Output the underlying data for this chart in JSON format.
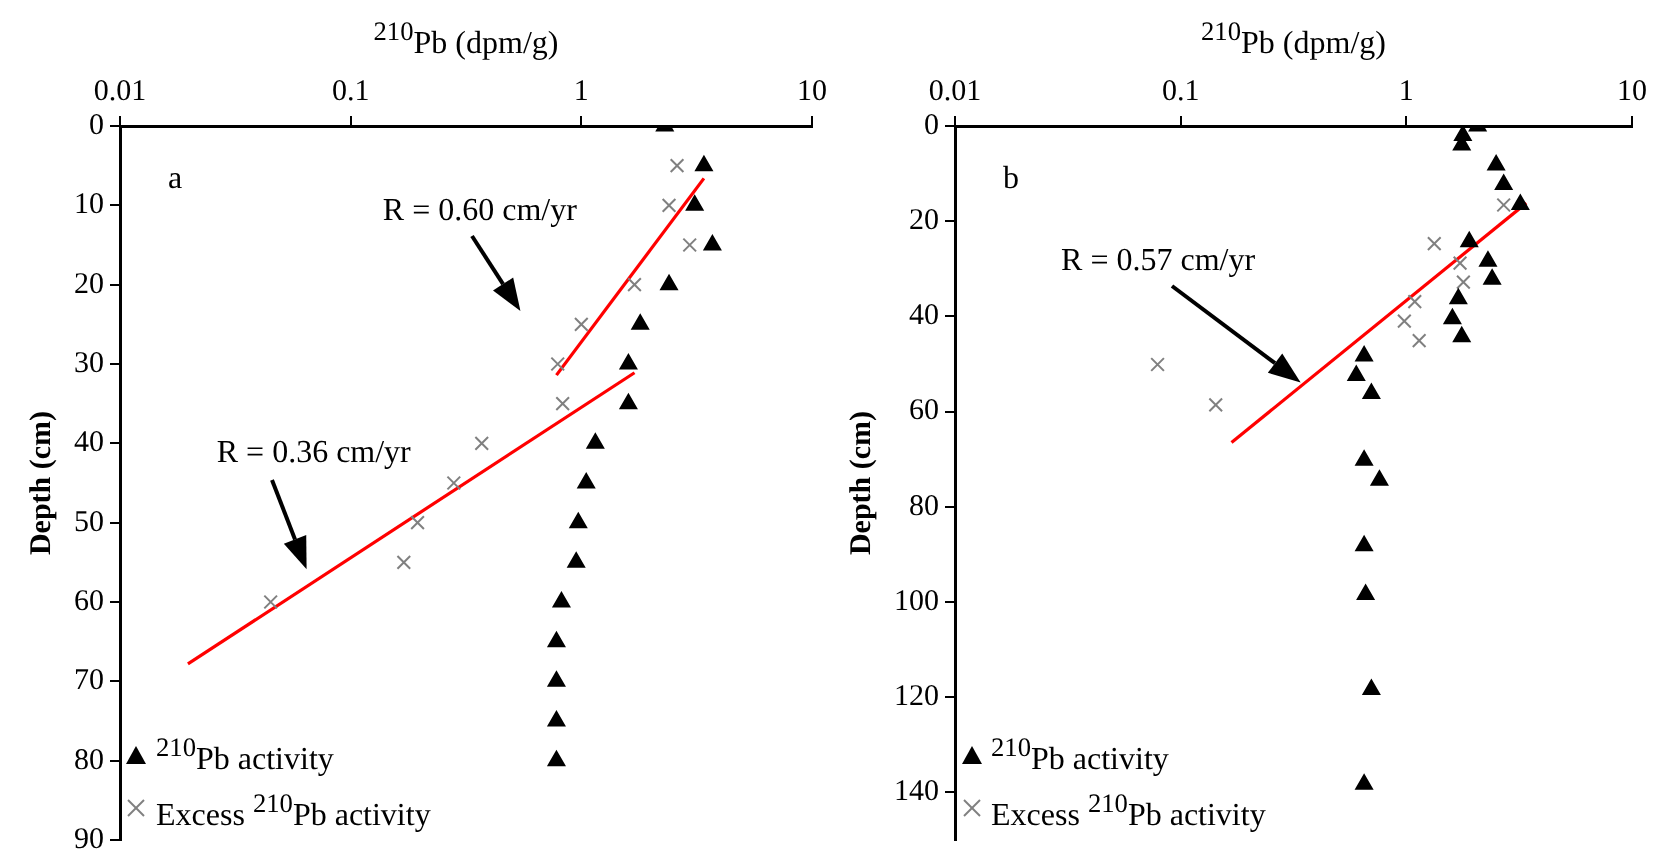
{
  "chart_data": [
    {
      "type": "scatter",
      "title": "a",
      "xlabel": "$^{210}$Pb (dpm/g)",
      "ylabel": "Depth (cm)",
      "log": "x",
      "xlim": [
        0.01,
        10
      ],
      "xticks": [
        0.01,
        0.1,
        1,
        10
      ],
      "ylim": [
        90,
        0
      ],
      "yticks": [
        0,
        10,
        20,
        30,
        40,
        50,
        60,
        70,
        80,
        90
      ],
      "grid": false,
      "legend": "bottom left",
      "series": [
        {
          "name": "$^{210}$Pb activity",
          "color": "#000000",
          "marker": "triangle",
          "x": [
            2.3,
            3.4,
            3.1,
            3.7,
            2.4,
            1.8,
            1.6,
            1.6,
            1.15,
            1.05,
            0.97,
            0.95,
            0.82,
            0.78,
            0.78,
            0.78,
            0.78
          ],
          "values": [
            0,
            5,
            10,
            15,
            20,
            25,
            30,
            35,
            40,
            45,
            50,
            55,
            60,
            65,
            70,
            75,
            80
          ]
        },
        {
          "name": "Excess $^{210}$Pb activity",
          "color": "#808080",
          "marker": "cross",
          "x": [
            2.6,
            2.4,
            2.95,
            1.7,
            1.0,
            0.79,
            0.83,
            0.37,
            0.28,
            0.195,
            0.17,
            0.045
          ],
          "values": [
            5,
            10,
            15,
            20,
            25,
            30,
            35,
            40,
            45,
            50,
            55,
            60
          ]
        },
        {
          "type": "line",
          "color": "#ff0000",
          "marker": "none",
          "x": [
            0.78,
            3.4
          ],
          "values": [
            31.4,
            6.6
          ]
        },
        {
          "type": "line",
          "color": "#ff0000",
          "marker": "none",
          "x": [
            0.0197,
            1.7
          ],
          "values": [
            67.8,
            31.1
          ]
        }
      ],
      "annotations": [
        "R = 0.60 cm/yr",
        "R = 0.36 cm/yr"
      ]
    },
    {
      "type": "scatter",
      "title": "b",
      "xlabel": "$^{210}$Pb (dpm/g)",
      "ylabel": "Depth (cm)",
      "log": "x",
      "xlim": [
        0.01,
        10
      ],
      "xticks": [
        0.01,
        0.1,
        1,
        10
      ],
      "ylim": [
        150,
        0
      ],
      "yticks": [
        0,
        20,
        40,
        60,
        80,
        100,
        120,
        140
      ],
      "grid": false,
      "legend": "bottom left",
      "series": [
        {
          "name": "$^{210}$Pb activity",
          "color": "#000000",
          "marker": "triangle",
          "x": [
            2.07,
            1.78,
            1.76,
            2.5,
            2.7,
            3.2,
            1.9,
            2.3,
            2.4,
            1.7,
            1.6,
            1.76,
            0.65,
            0.6,
            0.7,
            0.65,
            0.76,
            0.65,
            0.66,
            0.7,
            0.65
          ],
          "values": [
            0,
            2,
            4,
            8.2,
            12.3,
            16.5,
            24.3,
            28.4,
            32.2,
            36.3,
            40.5,
            44.3,
            48.3,
            52.4,
            56.2,
            70.2,
            74.4,
            88.2,
            98.4,
            118.4,
            138.3
          ]
        },
        {
          "name": "Excess $^{210}$Pb activity",
          "color": "#808080",
          "marker": "cross",
          "x": [
            2.7,
            1.33,
            1.73,
            1.79,
            1.09,
            0.98,
            1.14,
            0.079,
            0.143
          ],
          "values": [
            16.6,
            24.7,
            28.8,
            32.8,
            36.9,
            41,
            45.1,
            50.1,
            58.6
          ]
        },
        {
          "type": "line",
          "color": "#ff0000",
          "marker": "none",
          "x": [
            0.168,
            3.4
          ],
          "values": [
            66.5,
            16.2
          ]
        }
      ],
      "annotations": [
        "R = 0.57 cm/yr"
      ]
    }
  ]
}
